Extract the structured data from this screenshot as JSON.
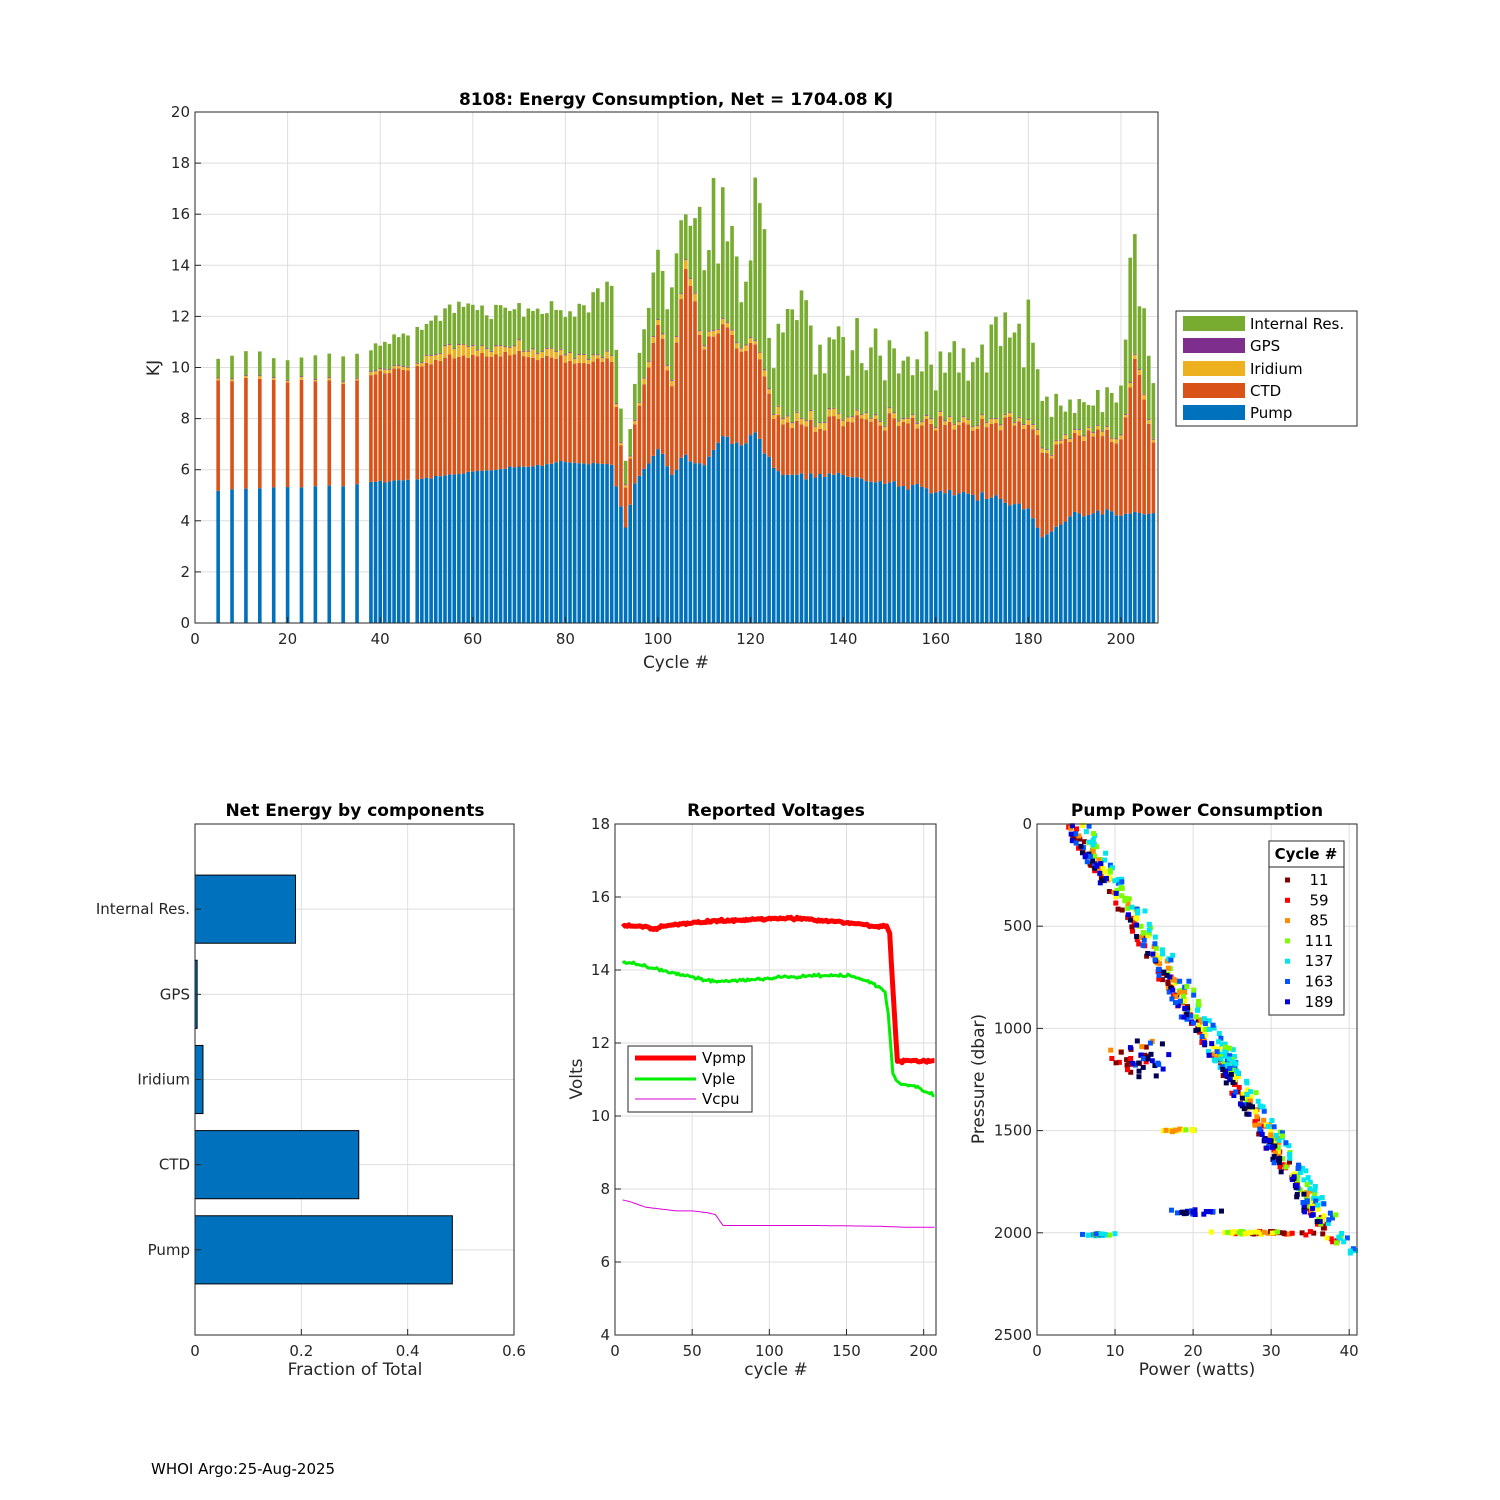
{
  "footer": "WHOI Argo:25-Aug-2025",
  "colors": {
    "pump": "#0072BD",
    "ctd": "#D95319",
    "iridium": "#EDB120",
    "gps": "#7E2F8E",
    "internal": "#77AC30",
    "vpmp": "#ff0000",
    "vple": "#00ee00",
    "vcpu": "#dd00dd"
  },
  "chart_data": [
    {
      "id": "energy",
      "type": "bar",
      "stacked": true,
      "title": "8108: Energy Consumption,  Net = 1704.08 KJ",
      "xlabel": "Cycle #",
      "ylabel": "KJ",
      "xlim": [
        0,
        208
      ],
      "ylim": [
        0,
        20
      ],
      "xticks": [
        0,
        20,
        40,
        60,
        80,
        100,
        120,
        140,
        160,
        180,
        200
      ],
      "yticks": [
        0,
        2,
        4,
        6,
        8,
        10,
        12,
        14,
        16,
        18,
        20
      ],
      "grid": true,
      "legend_position": "outside-right",
      "legend": [
        "Internal Res.",
        "GPS",
        "Iridium",
        "CTD",
        "Pump"
      ],
      "cycles_sparse": [
        5,
        8,
        11,
        14,
        17,
        20,
        23,
        26,
        29,
        32,
        35
      ],
      "cycles_dense_start": 38,
      "cycles_dense_end": 207,
      "cycles_missing": [
        47
      ],
      "anchors_cycle": [
        5,
        35,
        38,
        48,
        55,
        70,
        80,
        90,
        93,
        95,
        100,
        103,
        106,
        110,
        114,
        118,
        121,
        125,
        130,
        135,
        140,
        150,
        160,
        170,
        180,
        183,
        190,
        200,
        203,
        207
      ],
      "anchors_pump": [
        5.2,
        5.4,
        5.5,
        5.6,
        5.8,
        6.1,
        6.3,
        6.2,
        3.7,
        5.5,
        6.8,
        5.8,
        6.5,
        6.2,
        7.2,
        7.0,
        7.5,
        6.0,
        5.8,
        5.8,
        5.7,
        5.5,
        5.2,
        5.0,
        4.5,
        3.4,
        4.3,
        4.3,
        4.2,
        4.3
      ],
      "anchors_ctd": [
        4.3,
        4.0,
        4.2,
        4.4,
        4.6,
        4.4,
        4.0,
        4.0,
        1.5,
        2.2,
        4.9,
        3.5,
        7.5,
        4.8,
        4.2,
        4.0,
        3.5,
        2.0,
        2.0,
        2.0,
        2.2,
        2.4,
        2.6,
        2.8,
        3.3,
        3.3,
        3.0,
        2.8,
        6.1,
        2.8
      ],
      "anchors_iridium": [
        0.08,
        0.08,
        0.1,
        0.15,
        0.35,
        0.3,
        0.25,
        0.2,
        0.1,
        0.15,
        0.2,
        0.2,
        0.3,
        0.2,
        0.2,
        0.15,
        0.2,
        0.25,
        0.25,
        0.25,
        0.2,
        0.15,
        0.15,
        0.15,
        0.15,
        0.15,
        0.15,
        0.15,
        0.15,
        0.15
      ],
      "anchors_gps": [
        0.03,
        0.03,
        0.03,
        0.03,
        0.03,
        0.03,
        0.03,
        0.03,
        0.03,
        0.03,
        0.03,
        0.03,
        0.03,
        0.03,
        0.03,
        0.03,
        0.03,
        0.03,
        0.03,
        0.03,
        0.03,
        0.03,
        0.03,
        0.03,
        0.03,
        0.03,
        0.03,
        0.03,
        0.03,
        0.03
      ],
      "anchors_internal": [
        0.8,
        0.9,
        0.9,
        1.4,
        1.5,
        1.4,
        1.7,
        2.5,
        0.8,
        1.5,
        2.5,
        2.6,
        2.5,
        4.5,
        4.0,
        2.0,
        6.0,
        2.7,
        3.5,
        3.5,
        2.5,
        3.0,
        2.5,
        2.5,
        3.5,
        2.0,
        1.0,
        1.5,
        4.7,
        2.3
      ]
    },
    {
      "id": "components",
      "type": "bar",
      "orientation": "horizontal",
      "title": "Net Energy by components",
      "xlabel": "Fraction of Total",
      "categories": [
        "Internal Res.",
        "GPS",
        "Iridium",
        "CTD",
        "Pump"
      ],
      "values": [
        0.189,
        0.004,
        0.015,
        0.308,
        0.484
      ],
      "xlim": [
        0,
        0.6
      ],
      "xticks": [
        0,
        0.2,
        0.4,
        0.6
      ],
      "xtick_labels": [
        "0",
        "0.2",
        "0.4",
        "0.6"
      ],
      "grid": true
    },
    {
      "id": "voltages",
      "type": "line",
      "title": "Reported Voltages",
      "xlabel": "cycle #",
      "ylabel": "Volts",
      "xlim": [
        0,
        208
      ],
      "ylim": [
        4,
        18
      ],
      "xticks": [
        0,
        50,
        100,
        150,
        200
      ],
      "yticks": [
        4,
        6,
        8,
        10,
        12,
        14,
        16,
        18
      ],
      "grid": true,
      "legend_position": "middle-left",
      "series": [
        {
          "name": "Vpmp",
          "x": [
            5,
            20,
            25,
            30,
            50,
            70,
            100,
            115,
            150,
            170,
            176,
            178,
            180,
            183,
            207
          ],
          "y": [
            15.2,
            15.2,
            15.1,
            15.2,
            15.3,
            15.35,
            15.4,
            15.42,
            15.3,
            15.2,
            15.2,
            15.0,
            13.5,
            11.5,
            11.5
          ]
        },
        {
          "name": "Vple",
          "x": [
            5,
            10,
            20,
            40,
            50,
            60,
            70,
            90,
            110,
            130,
            150,
            165,
            175,
            177,
            180,
            183,
            195,
            207
          ],
          "y": [
            14.2,
            14.2,
            14.1,
            13.9,
            13.8,
            13.7,
            13.7,
            13.75,
            13.8,
            13.85,
            13.85,
            13.7,
            13.4,
            12.8,
            11.2,
            10.9,
            10.8,
            10.55
          ]
        },
        {
          "name": "Vcpu",
          "x": [
            5,
            10,
            20,
            30,
            40,
            50,
            60,
            65,
            70,
            90,
            110,
            130,
            150,
            170,
            190,
            207
          ],
          "y": [
            7.7,
            7.65,
            7.5,
            7.45,
            7.4,
            7.4,
            7.35,
            7.3,
            7.0,
            7.0,
            7.0,
            7.0,
            6.99,
            6.98,
            6.95,
            6.95
          ]
        }
      ]
    },
    {
      "id": "pump-power",
      "type": "scatter",
      "title": "Pump Power Consumption",
      "xlabel": "Power (watts)",
      "ylabel": "Pressure (dbar)",
      "xlim": [
        0,
        41
      ],
      "ylim": [
        0,
        2500
      ],
      "y_reversed": true,
      "xticks": [
        0,
        10,
        20,
        30,
        40
      ],
      "yticks": [
        0,
        500,
        1000,
        1500,
        2000,
        2500
      ],
      "grid": true,
      "legend_title": "Cycle #",
      "legend_position": "top-right",
      "legend": [
        "11",
        "59",
        "85",
        "111",
        "137",
        "163",
        "189"
      ],
      "legend_colors": [
        "#800000",
        "#ff0000",
        "#ff8c00",
        "#7cfc00",
        "#00e5ee",
        "#0055ff",
        "#0000dd"
      ],
      "colorscale": [
        "#000050",
        "#0000dd",
        "#0055ff",
        "#00e5ee",
        "#7cfc00",
        "#ffff00",
        "#ff8c00",
        "#ff0000",
        "#800000"
      ],
      "bands": [
        {
          "cycle_range": [
            5,
            60
          ],
          "p": [
            0,
            2050
          ],
          "power": [
            4,
            38
          ],
          "clusters": [
            [
              12,
              1150,
              3.5,
              100
            ],
            [
              31,
              2000,
              8,
              15
            ]
          ]
        },
        {
          "cycle_range": [
            60,
            110
          ],
          "p": [
            0,
            2050
          ],
          "power": [
            5,
            38.5
          ],
          "clusters": [
            [
              27,
              2000,
              7,
              12
            ],
            [
              18,
              1500,
              4,
              12
            ]
          ]
        },
        {
          "cycle_range": [
            110,
            150
          ],
          "p": [
            0,
            2100
          ],
          "power": [
            6,
            40.5
          ],
          "clusters": [
            [
              24,
              1150,
              3,
              120
            ],
            [
              8,
              2010,
              3,
              12
            ]
          ]
        },
        {
          "cycle_range": [
            150,
            207
          ],
          "p": [
            0,
            1950
          ],
          "power": [
            4,
            36
          ],
          "clusters": [
            [
              14,
              1150,
              3.5,
              120
            ],
            [
              20,
              1900,
              5,
              15
            ]
          ]
        }
      ]
    }
  ]
}
